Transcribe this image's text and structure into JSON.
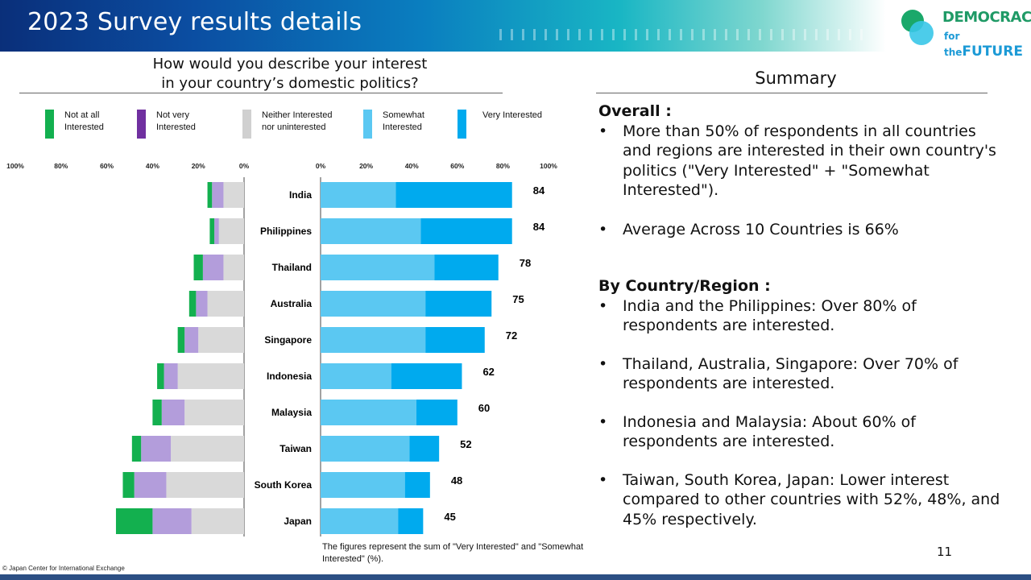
{
  "header": {
    "title": "2023 Survey results details"
  },
  "logo": {
    "line1": "DEMOCRACY",
    "line2_small": "for the",
    "line2_big": "FUTURE"
  },
  "question": {
    "line1": "How would you describe your interest",
    "line2": "in your country’s domestic politics?"
  },
  "summary": {
    "title": "Summary",
    "overall_heading": "Overall :",
    "overall_bullets": [
      "More than 50% of respondents in all countries and regions are interested in their own country's politics (\"Very Interested\" + \"Somewhat Interested\").",
      "Average Across 10 Countries is 66%"
    ],
    "country_heading": "By Country/Region :",
    "country_bullets": [
      "India and the Philippines: Over 80% of respondents are interested.",
      "Thailand, Australia, Singapore: Over 70% of respondents are interested.",
      "Indonesia and Malaysia: About 60% of respondents are interested.",
      "Taiwan, South Korea, Japan: Lower interest compared to other countries with 52%, 48%, and 45% respectively."
    ]
  },
  "legend": [
    {
      "label": "Not at all\nInterested",
      "color": "#13b04f"
    },
    {
      "label": "Not very\nInterested",
      "color": "#7030a0"
    },
    {
      "label": "Neither Interested\nnor uninterested",
      "color": "#d0d0d0"
    },
    {
      "label": "Somewhat\nInterested",
      "color": "#5bc8f2"
    },
    {
      "label": "Very Interested",
      "color": "#00aaee"
    }
  ],
  "chart_data": {
    "type": "bar",
    "orientation": "horizontal-diverging",
    "categories": [
      "India",
      "Philippines",
      "Thailand",
      "Australia",
      "Singapore",
      "Indonesia",
      "Malaysia",
      "Taiwan",
      "South Korea",
      "Japan"
    ],
    "left_series": [
      {
        "name": "Not at all Interested",
        "color": "#13b04f",
        "values": [
          2,
          2,
          4,
          3,
          3,
          3,
          4,
          4,
          5,
          16
        ]
      },
      {
        "name": "Not very Interested",
        "color": "#b39ddb",
        "values": [
          5,
          2,
          9,
          5,
          6,
          6,
          10,
          13,
          14,
          17
        ]
      },
      {
        "name": "Neither Interested nor uninterested",
        "color": "#d9d9d9",
        "values": [
          9,
          11,
          9,
          16,
          20,
          29,
          26,
          32,
          34,
          23
        ]
      }
    ],
    "right_series": [
      {
        "name": "Somewhat Interested",
        "color": "#5bc8f2",
        "values": [
          33,
          44,
          50,
          46,
          46,
          31,
          42,
          39,
          37,
          34
        ]
      },
      {
        "name": "Very Interested",
        "color": "#00aaee",
        "values": [
          51,
          40,
          28,
          29,
          26,
          31,
          18,
          13,
          11,
          11
        ]
      }
    ],
    "totals": [
      84,
      84,
      78,
      75,
      72,
      62,
      60,
      52,
      48,
      45
    ],
    "left_ticks": [
      "100%",
      "80%",
      "60%",
      "40%",
      "20%",
      "0%"
    ],
    "right_ticks": [
      "0%",
      "20%",
      "40%",
      "60%",
      "80%",
      "100%"
    ],
    "xlim": [
      0,
      100
    ]
  },
  "footnote": "The figures represent the sum of \"Very Interested\" and \"Somewhat Interested\" (%).",
  "page_number": "11",
  "copyright": "© Japan Center for International Exchange"
}
